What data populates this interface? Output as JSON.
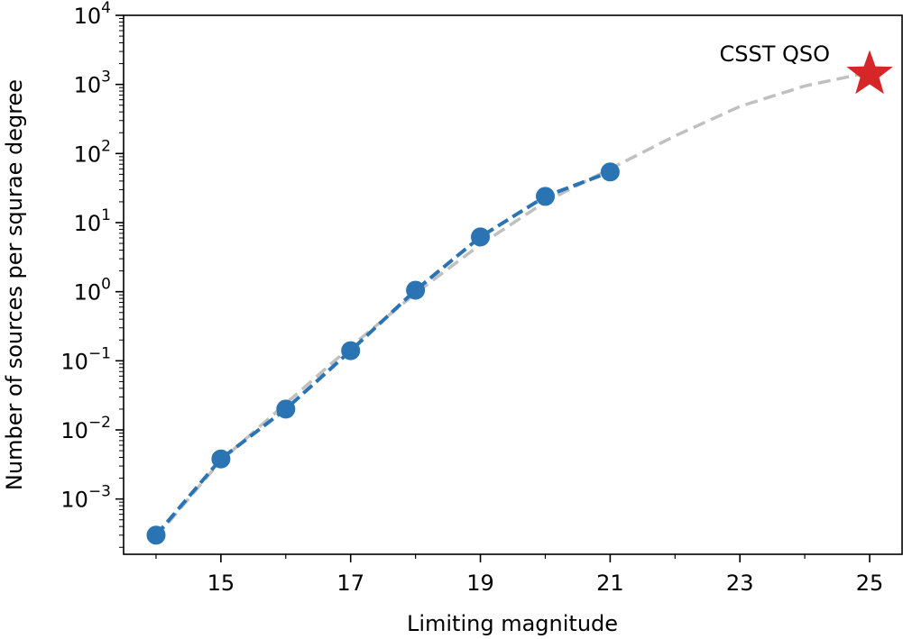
{
  "chart_data": {
    "type": "line",
    "xlabel": "Limiting magnitude",
    "ylabel": "Number of sources per squrae degree",
    "xlim": [
      13.5,
      25.5
    ],
    "ylim_log10": [
      -3.8,
      4
    ],
    "yscale": "log",
    "x_ticks": [
      15,
      17,
      19,
      21,
      23,
      25
    ],
    "x_minor_ticks": [
      14,
      16,
      18,
      20,
      22,
      24
    ],
    "y_tick_exponents": [
      -3,
      -2,
      -1,
      0,
      1,
      2,
      3,
      4
    ],
    "grid": false,
    "series": [
      {
        "style": "dashed",
        "color": "#c0c0c0",
        "x": [
          14,
          15,
          16,
          17,
          18,
          19,
          20,
          21,
          22,
          23,
          24,
          25
        ],
        "y": [
          0.00028,
          0.0036,
          0.024,
          0.16,
          0.95,
          4.8,
          20,
          60,
          180,
          480,
          950,
          1500
        ]
      },
      {
        "style": "dashed-markers",
        "color": "#2a74b4",
        "x": [
          14,
          15,
          16,
          17,
          18,
          19,
          20,
          21
        ],
        "y": [
          0.0003,
          0.0038,
          0.02,
          0.14,
          1.05,
          6.2,
          24,
          54
        ]
      }
    ],
    "annotation": {
      "text": "CSST QSO",
      "marker": "star",
      "color": "#d62728",
      "x": 25,
      "y": 1400
    }
  }
}
